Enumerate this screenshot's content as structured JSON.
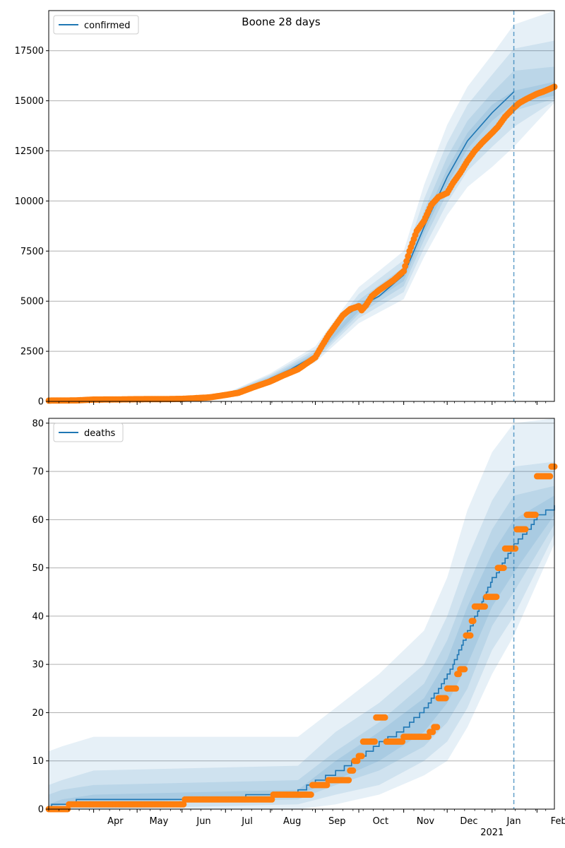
{
  "figure": {
    "title": "Boone 28 days",
    "colors": {
      "model_line": "#1f77b4",
      "observed": "#ff7f0e",
      "band": "#1f77b4",
      "grid": "#b0b0b0",
      "forecast_line": "#1f77b4"
    }
  },
  "chart_data": [
    {
      "type": "line",
      "panel": "confirmed",
      "title": "Boone 28 days",
      "legend": [
        "confirmed"
      ],
      "legend_position": "upper left",
      "grid": "horizontal",
      "x_range": [
        "2020-03-01",
        "2021-02-13"
      ],
      "ylim": [
        0,
        19500
      ],
      "yticks": [
        0,
        2500,
        5000,
        7500,
        10000,
        12500,
        15000,
        17500
      ],
      "ytick_labels": [
        "0",
        "2500",
        "5000",
        "7500",
        "10000",
        "12500",
        "15000",
        "17500"
      ],
      "forecast_start": "2021-01-16",
      "model": {
        "name": "confirmed",
        "x": [
          "2020-03-01",
          "2020-04-01",
          "2020-05-01",
          "2020-06-01",
          "2020-06-15",
          "2020-07-01",
          "2020-07-15",
          "2020-08-01",
          "2020-08-15",
          "2020-09-01",
          "2020-09-10",
          "2020-09-20",
          "2020-10-01",
          "2020-10-15",
          "2020-11-01",
          "2020-11-15",
          "2020-12-01",
          "2020-12-15",
          "2021-01-01",
          "2021-01-16"
        ],
        "y": [
          0,
          60,
          90,
          120,
          180,
          320,
          550,
          1150,
          1600,
          2300,
          3400,
          4200,
          4700,
          5250,
          6300,
          8700,
          11200,
          13000,
          14400,
          15450
        ]
      },
      "bands": [
        {
          "x": [
            "2020-03-01",
            "2020-06-01",
            "2020-07-01",
            "2020-08-01",
            "2020-09-01",
            "2020-10-01",
            "2020-11-01",
            "2020-11-15",
            "2020-12-01",
            "2020-12-15",
            "2021-01-01",
            "2021-01-16",
            "2021-02-13"
          ],
          "lower": [
            0,
            100,
            270,
            1000,
            1950,
            3900,
            5100,
            7200,
            9300,
            10700,
            11700,
            12700,
            14900
          ],
          "upper": [
            0,
            150,
            390,
            1400,
            2750,
            5700,
            7500,
            10800,
            13800,
            15700,
            17300,
            18800,
            19500
          ]
        },
        {
          "x": [
            "2020-03-01",
            "2020-06-01",
            "2020-07-01",
            "2020-08-01",
            "2020-09-01",
            "2020-10-01",
            "2020-11-01",
            "2020-11-15",
            "2020-12-01",
            "2020-12-15",
            "2021-01-01",
            "2021-01-16",
            "2021-02-13"
          ],
          "lower": [
            0,
            105,
            285,
            1050,
            2050,
            4150,
            5450,
            7650,
            9900,
            11500,
            12700,
            13700,
            15000
          ],
          "upper": [
            0,
            140,
            370,
            1330,
            2600,
            5350,
            7050,
            10100,
            12900,
            14800,
            16300,
            17600,
            18000
          ]
        },
        {
          "x": [
            "2020-03-01",
            "2020-06-01",
            "2020-07-01",
            "2020-08-01",
            "2020-09-01",
            "2020-10-01",
            "2020-11-01",
            "2020-11-15",
            "2020-12-01",
            "2020-12-15",
            "2021-01-01",
            "2021-01-16",
            "2021-02-13"
          ],
          "lower": [
            0,
            110,
            295,
            1090,
            2150,
            4350,
            5750,
            8050,
            10400,
            12100,
            13500,
            14500,
            15100
          ],
          "upper": [
            0,
            132,
            355,
            1260,
            2480,
            5050,
            6700,
            9500,
            12200,
            14000,
            15400,
            16500,
            16700
          ]
        },
        {
          "x": [
            "2020-03-01",
            "2020-06-01",
            "2020-07-01",
            "2020-08-01",
            "2020-09-01",
            "2020-10-01",
            "2020-11-01",
            "2020-11-15",
            "2020-12-01",
            "2020-12-15",
            "2021-01-01",
            "2021-01-16",
            "2021-02-13"
          ],
          "lower": [
            0,
            114,
            305,
            1120,
            2230,
            4500,
            6000,
            8400,
            10800,
            12600,
            14000,
            14900,
            15250
          ],
          "upper": [
            0,
            126,
            340,
            1190,
            2380,
            4850,
            6400,
            9050,
            11600,
            13400,
            14800,
            15500,
            15950
          ]
        }
      ],
      "observed": {
        "x": [
          "2020-03-01",
          "2020-03-20",
          "2020-04-01",
          "2020-04-20",
          "2020-05-01",
          "2020-05-20",
          "2020-06-01",
          "2020-06-10",
          "2020-06-20",
          "2020-07-01",
          "2020-07-10",
          "2020-07-20",
          "2020-08-01",
          "2020-08-10",
          "2020-08-20",
          "2020-09-01",
          "2020-09-05",
          "2020-09-10",
          "2020-09-15",
          "2020-09-20",
          "2020-09-25",
          "2020-10-01",
          "2020-10-03",
          "2020-10-06",
          "2020-10-10",
          "2020-10-15",
          "2020-10-20",
          "2020-10-25",
          "2020-11-01",
          "2020-11-05",
          "2020-11-10",
          "2020-11-15",
          "2020-11-20",
          "2020-11-25",
          "2020-12-01",
          "2020-12-05",
          "2020-12-10",
          "2020-12-15",
          "2020-12-20",
          "2020-12-25",
          "2021-01-01",
          "2021-01-05",
          "2021-01-10",
          "2021-01-16",
          "2021-01-20",
          "2021-01-25",
          "2021-02-01",
          "2021-02-05",
          "2021-02-10",
          "2021-02-13"
        ],
        "y": [
          40,
          50,
          90,
          100,
          110,
          115,
          125,
          160,
          200,
          320,
          430,
          700,
          1000,
          1300,
          1600,
          2200,
          2700,
          3300,
          3800,
          4300,
          4600,
          4750,
          4550,
          4800,
          5250,
          5550,
          5800,
          6050,
          6500,
          7500,
          8500,
          9000,
          9800,
          10200,
          10400,
          10900,
          11400,
          12000,
          12500,
          12900,
          13400,
          13700,
          14200,
          14650,
          14900,
          15100,
          15350,
          15450,
          15600,
          15700
        ]
      }
    },
    {
      "type": "line",
      "panel": "deaths",
      "legend": [
        "deaths"
      ],
      "legend_position": "upper left",
      "grid": "horizontal",
      "x_range": [
        "2020-03-01",
        "2021-02-13"
      ],
      "xtick_labels": [
        "Apr",
        "May",
        "Jun",
        "Jul",
        "Aug",
        "Sep",
        "Oct",
        "Nov",
        "Dec",
        "Jan",
        "Feb"
      ],
      "xtick_dates": [
        "2020-04-01",
        "2020-05-01",
        "2020-06-01",
        "2020-07-01",
        "2020-08-01",
        "2020-09-01",
        "2020-10-01",
        "2020-11-01",
        "2020-12-01",
        "2021-01-01",
        "2021-02-01"
      ],
      "year_label": "2021",
      "ylim": [
        0,
        81
      ],
      "yticks": [
        0,
        10,
        20,
        30,
        40,
        50,
        60,
        70,
        80
      ],
      "ytick_labels": [
        "0",
        "10",
        "20",
        "30",
        "40",
        "50",
        "60",
        "70",
        "80"
      ],
      "forecast_start": "2021-01-16",
      "model": {
        "name": "deaths",
        "x": [
          "2020-03-01",
          "2020-03-03",
          "2020-03-20",
          "2020-06-01",
          "2020-06-15",
          "2020-07-15",
          "2020-08-05",
          "2020-08-20",
          "2020-09-01",
          "2020-09-15",
          "2020-10-01",
          "2020-10-15",
          "2020-11-01",
          "2020-11-15",
          "2020-12-01",
          "2020-12-15",
          "2021-01-01",
          "2021-01-16",
          "2021-01-25",
          "2021-02-01",
          "2021-02-13"
        ],
        "y": [
          0,
          1,
          2,
          2,
          2,
          3,
          3,
          4,
          6,
          8,
          11,
          14,
          17,
          21,
          28,
          37,
          48,
          55,
          58,
          61,
          63
        ]
      },
      "bands": [
        {
          "x": [
            "2020-03-01",
            "2020-03-10",
            "2020-04-01",
            "2020-08-20",
            "2020-09-15",
            "2020-10-15",
            "2020-11-15",
            "2020-12-01",
            "2020-12-15",
            "2021-01-01",
            "2021-01-16",
            "2021-02-13"
          ],
          "lower": [
            0,
            0,
            0,
            0,
            1,
            3,
            7,
            10,
            17,
            28,
            36,
            55
          ],
          "upper": [
            12,
            13,
            15,
            15,
            21,
            28,
            37,
            48,
            62,
            74,
            80,
            81
          ]
        },
        {
          "x": [
            "2020-03-01",
            "2020-03-10",
            "2020-04-01",
            "2020-08-20",
            "2020-09-15",
            "2020-10-15",
            "2020-11-15",
            "2020-12-01",
            "2020-12-15",
            "2021-01-01",
            "2021-01-16",
            "2021-02-13"
          ],
          "lower": [
            0,
            0,
            0,
            1,
            3,
            5,
            10,
            14,
            21,
            33,
            40,
            57
          ],
          "upper": [
            5,
            6,
            8,
            9,
            16,
            22,
            30,
            40,
            52,
            64,
            71,
            72
          ]
        },
        {
          "x": [
            "2020-03-01",
            "2020-03-10",
            "2020-04-01",
            "2020-08-20",
            "2020-09-15",
            "2020-10-15",
            "2020-11-15",
            "2020-12-01",
            "2020-12-15",
            "2021-01-01",
            "2021-01-16",
            "2021-02-13"
          ],
          "lower": [
            0,
            0,
            1,
            2,
            5,
            8,
            13,
            18,
            25,
            38,
            45,
            59
          ],
          "upper": [
            3,
            4,
            5,
            6,
            12,
            18,
            26,
            35,
            46,
            58,
            65,
            67
          ]
        },
        {
          "x": [
            "2020-03-01",
            "2020-03-10",
            "2020-04-01",
            "2020-08-20",
            "2020-09-15",
            "2020-10-15",
            "2020-11-15",
            "2020-12-01",
            "2020-12-15",
            "2021-01-01",
            "2021-01-16",
            "2021-02-13"
          ],
          "lower": [
            0,
            1,
            1,
            3,
            6,
            10,
            16,
            22,
            30,
            42,
            49,
            61
          ],
          "upper": [
            1,
            2,
            3,
            4,
            10,
            16,
            23,
            31,
            42,
            53,
            60,
            65
          ]
        }
      ],
      "observed": {
        "x": [
          "2020-03-01",
          "2020-03-10",
          "2020-03-15",
          "2020-04-01",
          "2020-05-01",
          "2020-06-01",
          "2020-06-03",
          "2020-07-01",
          "2020-08-01",
          "2020-08-03",
          "2020-08-20",
          "2020-08-30",
          "2020-09-10",
          "2020-09-22",
          "2020-09-25",
          "2020-09-28",
          "2020-10-01",
          "2020-10-04",
          "2020-10-08",
          "2020-10-13",
          "2020-10-20",
          "2020-10-25",
          "2020-11-01",
          "2020-11-10",
          "2020-11-15",
          "2020-11-19",
          "2020-11-22",
          "2020-11-25",
          "2020-11-29",
          "2020-12-01",
          "2020-12-08",
          "2020-12-10",
          "2020-12-14",
          "2020-12-18",
          "2020-12-20",
          "2020-12-24",
          "2020-12-28",
          "2021-01-01",
          "2021-01-05",
          "2021-01-10",
          "2021-01-15",
          "2021-01-18",
          "2021-01-21",
          "2021-01-25",
          "2021-01-29",
          "2021-02-01",
          "2021-02-06",
          "2021-02-11",
          "2021-02-13"
        ],
        "y": [
          0,
          0,
          1,
          1,
          1,
          1,
          2,
          2,
          2,
          3,
          3,
          5,
          6,
          6,
          8,
          10,
          11,
          14,
          14,
          19,
          14,
          14,
          15,
          15,
          15,
          16,
          17,
          23,
          23,
          25,
          28,
          29,
          36,
          39,
          42,
          42,
          44,
          44,
          50,
          54,
          54,
          58,
          58,
          61,
          61,
          69,
          69,
          71,
          71
        ]
      }
    }
  ]
}
